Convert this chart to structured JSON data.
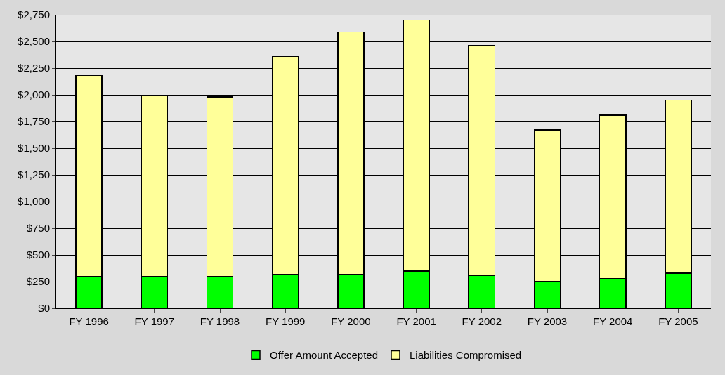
{
  "chart_data": {
    "type": "bar",
    "stacked": true,
    "categories": [
      "FY 1996",
      "FY 1997",
      "FY 1998",
      "FY 1999",
      "FY 2000",
      "FY 2001",
      "FY 2002",
      "FY 2003",
      "FY 2004",
      "FY 2005"
    ],
    "series": [
      {
        "name": "Offer Amount Accepted",
        "color": "#00ff00",
        "values": [
          300,
          300,
          300,
          320,
          320,
          350,
          310,
          250,
          280,
          330
        ]
      },
      {
        "name": "Liabilities Compromised",
        "color": "#ffff99",
        "values": [
          1880,
          1690,
          1680,
          2040,
          2270,
          2350,
          2150,
          1420,
          1530,
          1620
        ]
      }
    ],
    "ylim": [
      0,
      2750
    ],
    "yticks": [
      {
        "value": 0,
        "label": "$0"
      },
      {
        "value": 250,
        "label": "$250"
      },
      {
        "value": 500,
        "label": "$500"
      },
      {
        "value": 750,
        "label": "$750"
      },
      {
        "value": 1000,
        "label": "$1,000"
      },
      {
        "value": 1250,
        "label": "$1,250"
      },
      {
        "value": 1500,
        "label": "$1,500"
      },
      {
        "value": 1750,
        "label": "$1,750"
      },
      {
        "value": 2000,
        "label": "$2,000"
      },
      {
        "value": 2250,
        "label": "$2,250"
      },
      {
        "value": 2500,
        "label": "$2,500"
      },
      {
        "value": 2750,
        "label": "$2,750"
      }
    ],
    "grid": "y",
    "legend": "bottom"
  }
}
